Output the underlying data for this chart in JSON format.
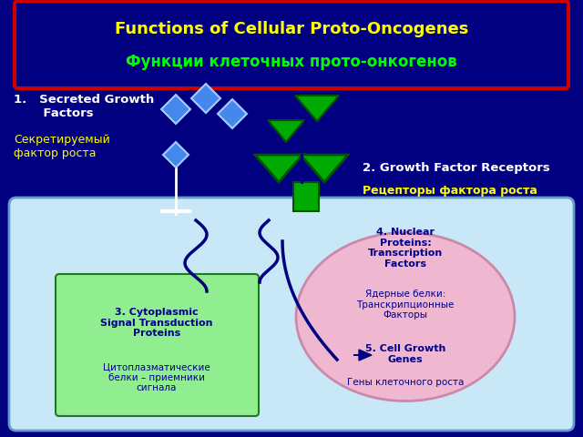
{
  "bg_color": "#000080",
  "title_en": "Functions of Cellular Proto-Oncogenes",
  "title_ru": "Функции клеточных прото-онкогенов",
  "title_box_color": "#cc0000",
  "title_en_color": "#ffff00",
  "title_ru_color": "#00ff00",
  "label1_en": "1.   Secreted Growth\n       Factors",
  "label1_ru": "Секретируемый\nфактор роста",
  "label2_en": "2. Growth Factor Receptors",
  "label2_ru": "Рецепторы фактора роста",
  "label3_en": "3. Cytoplasmic\nSignal Transduction\nProteins",
  "label3_ru": "Цитоплазматические\nбелки – приемники\nсигнала",
  "label4_en": "4. Nuclear\nProteins:\nTranscription\nFactors",
  "label4_ru": "Ядерные белки:\nТранскрипционные\nФакторы",
  "label5_en": "5. Cell Growth\nGenes",
  "label5_ru": "Гены клеточного роста",
  "cell_bg": "#c8e8f8",
  "nucleus_bg": "#f0b8d0",
  "box3_bg": "#90ee90",
  "text_dark": "#00008b",
  "text_white": "#ffffff",
  "squiggle_color": "#000080",
  "diamond_fill": "#4488ee",
  "diamond_edge": "#aaccff",
  "tri_fill": "#00aa00",
  "tri_edge": "#005500"
}
